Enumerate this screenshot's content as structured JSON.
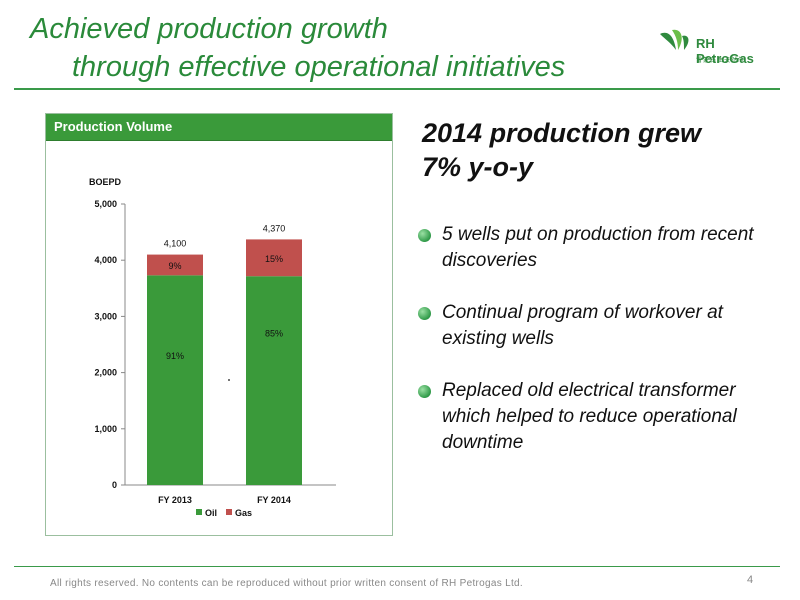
{
  "title": {
    "line1": "Achieved production growth",
    "line2": "through effective operational initiatives"
  },
  "logo": {
    "name": "RH PetroGas",
    "subtitle": "雷蒙石油天然气",
    "brand_color": "#2f8a3e"
  },
  "panel": {
    "header": "Production Volume"
  },
  "headline": {
    "line1": "2014 production grew",
    "line2": "7% y-o-y"
  },
  "bullets": [
    "5 wells put on production from recent discoveries",
    "Continual program of workover at existing wells",
    "Replaced old electrical transformer which helped to reduce operational downtime"
  ],
  "footer": {
    "text": "All rights reserved. No contents can be reproduced without prior written consent of RH Petrogas Ltd.",
    "page": "4"
  },
  "chart_data": {
    "type": "bar",
    "stacked": true,
    "ylabel": "BOEPD",
    "categories": [
      "FY 2013",
      "FY 2014"
    ],
    "ylim": [
      0,
      5000
    ],
    "yticks": [
      "0",
      "1,000",
      "2,000",
      "3,000",
      "4,000",
      "5,000"
    ],
    "ytick_values": [
      0,
      1000,
      2000,
      3000,
      4000,
      5000
    ],
    "totals": [
      "4,100",
      "4,370"
    ],
    "total_values": [
      4100,
      4370
    ],
    "series": [
      {
        "name": "Oil",
        "values": [
          3731,
          3715
        ],
        "labels": [
          "91%",
          "85%"
        ],
        "color": "#3a9a3a"
      },
      {
        "name": "Gas",
        "values": [
          369,
          655
        ],
        "labels": [
          "9%",
          "15%"
        ],
        "color": "#c0504d"
      }
    ],
    "legend": "bottom",
    "grid": false
  }
}
